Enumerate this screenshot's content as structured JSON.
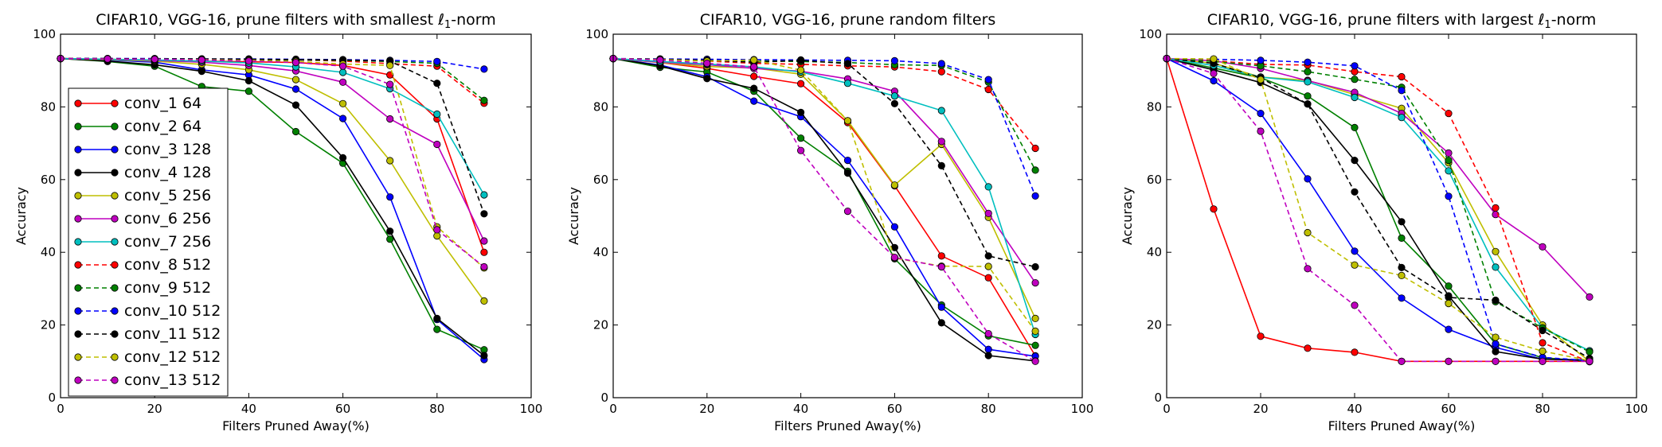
{
  "chart_data": [
    {
      "type": "line",
      "title": "CIFAR10, VGG-16, prune filters with smallest ℓ1-norm",
      "title_parts": {
        "prefix": "CIFAR10, VGG-16, prune filters with smallest ",
        "norm_symbol": "ℓ",
        "norm_subscript": "1",
        "suffix": "-norm"
      },
      "xlabel": "Filters Pruned Away(%)",
      "ylabel": "Accuracy",
      "xlim": [
        0,
        100
      ],
      "ylim": [
        0,
        100
      ],
      "xticks": [
        "0",
        "20",
        "40",
        "60",
        "80",
        "100"
      ],
      "yticks": [
        "0",
        "20",
        "40",
        "60",
        "80",
        "100"
      ],
      "grid": false,
      "legend_placement": "lower-left",
      "x": [
        0,
        10,
        20,
        30,
        40,
        50,
        60,
        70,
        80,
        90
      ],
      "series": [
        {
          "name": "conv_1 64",
          "color": "#ff0000",
          "style": "solid",
          "values": [
            93.3,
            93.1,
            92.8,
            92.6,
            92.4,
            92.2,
            91.4,
            88.8,
            76.7,
            40.0
          ]
        },
        {
          "name": "conv_2 64",
          "color": "#008000",
          "style": "solid",
          "values": [
            93.3,
            92.5,
            91.2,
            85.6,
            84.3,
            73.2,
            64.5,
            43.6,
            18.8,
            13.2
          ]
        },
        {
          "name": "conv_3 128",
          "color": "#0000ff",
          "style": "solid",
          "values": [
            93.3,
            92.9,
            92.3,
            90.2,
            88.8,
            84.9,
            76.8,
            55.2,
            21.5,
            10.5
          ]
        },
        {
          "name": "conv_4 128",
          "color": "#000000",
          "style": "solid",
          "values": [
            93.3,
            92.6,
            91.6,
            89.8,
            87.2,
            80.5,
            66.0,
            45.8,
            21.8,
            11.6
          ]
        },
        {
          "name": "conv_5 256",
          "color": "#bfbf00",
          "style": "solid",
          "values": [
            93.3,
            93.0,
            92.6,
            91.7,
            90.2,
            87.5,
            80.9,
            65.2,
            44.5,
            26.6
          ]
        },
        {
          "name": "conv_6 256",
          "color": "#bf00bf",
          "style": "solid",
          "values": [
            93.3,
            93.1,
            92.8,
            92.3,
            91.4,
            89.9,
            86.8,
            76.7,
            69.7,
            43.1
          ]
        },
        {
          "name": "conv_7 256",
          "color": "#00bfbf",
          "style": "solid",
          "values": [
            93.3,
            93.1,
            92.9,
            92.6,
            92.1,
            91.0,
            89.5,
            85.0,
            78.0,
            55.8
          ]
        },
        {
          "name": "conv_8 512",
          "color": "#ff0000",
          "style": "dashed",
          "values": [
            93.3,
            93.2,
            93.2,
            93.1,
            93.0,
            92.9,
            92.6,
            91.9,
            91.2,
            81.0
          ]
        },
        {
          "name": "conv_9 512",
          "color": "#008000",
          "style": "dashed",
          "values": [
            93.3,
            93.2,
            93.2,
            93.1,
            93.0,
            92.9,
            92.8,
            92.5,
            92.0,
            81.8
          ]
        },
        {
          "name": "conv_10 512",
          "color": "#0000ff",
          "style": "dashed",
          "values": [
            93.3,
            93.3,
            93.3,
            93.2,
            93.2,
            93.1,
            93.0,
            92.8,
            92.5,
            90.4
          ]
        },
        {
          "name": "conv_11 512",
          "color": "#000000",
          "style": "dashed",
          "values": [
            93.3,
            93.3,
            93.2,
            93.2,
            93.1,
            93.0,
            92.9,
            92.6,
            86.5,
            50.6
          ]
        },
        {
          "name": "conv_12 512",
          "color": "#bfbf00",
          "style": "dashed",
          "values": [
            93.3,
            93.2,
            93.1,
            93.0,
            92.8,
            92.5,
            91.8,
            91.4,
            47.0,
            35.7
          ]
        },
        {
          "name": "conv_13 512",
          "color": "#bf00bf",
          "style": "dashed",
          "values": [
            93.3,
            93.2,
            93.1,
            92.9,
            92.6,
            92.2,
            91.2,
            86.2,
            46.2,
            36.0
          ]
        }
      ]
    },
    {
      "type": "line",
      "title": "CIFAR10, VGG-16, prune random filters",
      "xlabel": "Filters Pruned Away(%)",
      "ylabel": "Accuracy",
      "xlim": [
        0,
        100
      ],
      "ylim": [
        0,
        100
      ],
      "xticks": [
        "0",
        "20",
        "40",
        "60",
        "80",
        "100"
      ],
      "yticks": [
        "0",
        "20",
        "40",
        "60",
        "80",
        "100"
      ],
      "grid": false,
      "x": [
        0,
        10,
        20,
        30,
        40,
        50,
        60,
        70,
        80,
        90
      ],
      "series": [
        {
          "color": "#ff0000",
          "style": "solid",
          "values": [
            93.3,
            92.2,
            90.6,
            88.4,
            86.4,
            75.7,
            58.3,
            39.0,
            33.0,
            11.5
          ]
        },
        {
          "color": "#008000",
          "style": "solid",
          "values": [
            93.3,
            90.9,
            89.6,
            84.3,
            71.4,
            62.3,
            38.2,
            25.5,
            17.0,
            14.4
          ]
        },
        {
          "color": "#0000ff",
          "style": "solid",
          "values": [
            93.3,
            91.5,
            88.3,
            81.6,
            77.3,
            65.3,
            47.0,
            24.9,
            13.3,
            11.4
          ]
        },
        {
          "color": "#000000",
          "style": "solid",
          "values": [
            93.3,
            91.3,
            87.8,
            85.1,
            78.5,
            61.8,
            41.3,
            20.6,
            11.6,
            10.1
          ]
        },
        {
          "color": "#bfbf00",
          "style": "solid",
          "values": [
            93.3,
            92.2,
            91.1,
            90.7,
            89.0,
            76.2,
            58.5,
            69.7,
            49.6,
            21.8
          ]
        },
        {
          "color": "#bf00bf",
          "style": "solid",
          "values": [
            93.3,
            92.3,
            91.6,
            90.6,
            89.8,
            87.7,
            84.3,
            70.5,
            50.7,
            31.6
          ]
        },
        {
          "color": "#00bfbf",
          "style": "solid",
          "values": [
            93.3,
            92.5,
            91.8,
            91.0,
            89.6,
            86.5,
            83.0,
            79.0,
            58.0,
            17.4
          ]
        },
        {
          "color": "#ff0000",
          "style": "dashed",
          "values": [
            93.3,
            93.1,
            92.6,
            92.0,
            91.7,
            91.3,
            91.0,
            89.7,
            84.8,
            68.6
          ]
        },
        {
          "color": "#008000",
          "style": "dashed",
          "values": [
            93.3,
            93.1,
            93.0,
            92.7,
            92.5,
            92.2,
            91.6,
            91.4,
            86.8,
            62.6
          ]
        },
        {
          "color": "#0000ff",
          "style": "dashed",
          "values": [
            93.3,
            93.2,
            93.1,
            93.0,
            92.9,
            92.8,
            92.7,
            91.9,
            87.5,
            55.5
          ]
        },
        {
          "color": "#000000",
          "style": "dashed",
          "values": [
            93.3,
            93.1,
            92.8,
            92.3,
            92.8,
            91.9,
            80.9,
            63.8,
            39.0,
            36.0
          ]
        },
        {
          "color": "#bfbf00",
          "style": "dashed",
          "values": [
            93.3,
            93.0,
            92.6,
            92.9,
            90.1,
            76.2,
            38.4,
            36.2,
            36.1,
            18.3
          ]
        },
        {
          "color": "#bf00bf",
          "style": "dashed",
          "values": [
            93.3,
            92.9,
            92.0,
            91.0,
            68.0,
            51.3,
            38.6,
            36.0,
            17.6,
            10.0
          ]
        }
      ]
    },
    {
      "type": "line",
      "title": "CIFAR10, VGG-16, prune filters with largest ℓ1-norm",
      "title_parts": {
        "prefix": "CIFAR10, VGG-16, prune filters with largest ",
        "norm_symbol": "ℓ",
        "norm_subscript": "1",
        "suffix": "-norm"
      },
      "xlabel": "Filters Pruned Away(%)",
      "ylabel": "Accuracy",
      "xlim": [
        0,
        100
      ],
      "ylim": [
        0,
        100
      ],
      "xticks": [
        "0",
        "20",
        "40",
        "60",
        "80",
        "100"
      ],
      "yticks": [
        "0",
        "20",
        "40",
        "60",
        "80",
        "100"
      ],
      "grid": false,
      "x": [
        0,
        10,
        20,
        30,
        40,
        50,
        60,
        70,
        80,
        90
      ],
      "series": [
        {
          "color": "#ff0000",
          "style": "solid",
          "values": [
            93.3,
            51.9,
            16.9,
            13.6,
            12.5,
            10.0,
            10.0,
            10.0,
            10.0,
            10.0
          ]
        },
        {
          "color": "#008000",
          "style": "solid",
          "values": [
            93.3,
            90.7,
            88.0,
            83.0,
            74.3,
            43.9,
            30.7,
            14.8,
            11.0,
            10.0
          ]
        },
        {
          "color": "#0000ff",
          "style": "solid",
          "values": [
            93.3,
            87.2,
            78.2,
            60.2,
            40.3,
            27.4,
            18.8,
            13.8,
            10.6,
            10.4
          ]
        },
        {
          "color": "#000000",
          "style": "solid",
          "values": [
            93.3,
            90.2,
            86.7,
            80.8,
            65.3,
            48.4,
            28.0,
            12.7,
            10.6,
            10.3
          ]
        },
        {
          "color": "#bfbf00",
          "style": "solid",
          "values": [
            93.3,
            92.0,
            88.2,
            87.3,
            83.4,
            79.6,
            64.6,
            40.2,
            20.0,
            10.0
          ]
        },
        {
          "color": "#bf00bf",
          "style": "solid",
          "values": [
            93.3,
            92.7,
            90.6,
            87.2,
            84.0,
            78.2,
            67.3,
            50.4,
            41.5,
            27.7
          ]
        },
        {
          "color": "#00bfbf",
          "style": "solid",
          "values": [
            93.3,
            91.4,
            88.2,
            86.9,
            82.6,
            77.1,
            62.4,
            35.9,
            19.2,
            12.9
          ]
        },
        {
          "color": "#ff0000",
          "style": "dashed",
          "values": [
            93.3,
            92.7,
            91.7,
            91.5,
            89.7,
            88.3,
            78.2,
            52.2,
            15.1,
            9.9
          ]
        },
        {
          "color": "#008000",
          "style": "dashed",
          "values": [
            93.3,
            92.5,
            91.3,
            89.7,
            87.6,
            85.4,
            65.3,
            26.4,
            19.2,
            12.6
          ]
        },
        {
          "color": "#0000ff",
          "style": "dashed",
          "values": [
            93.3,
            93.1,
            92.8,
            92.3,
            91.3,
            84.5,
            55.4,
            14.8,
            11.1,
            10.2
          ]
        },
        {
          "color": "#000000",
          "style": "dashed",
          "values": [
            93.3,
            92.0,
            88.0,
            80.8,
            56.6,
            35.8,
            27.6,
            26.8,
            18.5,
            10.8
          ]
        },
        {
          "color": "#bfbf00",
          "style": "dashed",
          "values": [
            93.3,
            93.2,
            87.5,
            45.4,
            36.5,
            33.6,
            25.9,
            16.6,
            12.8,
            10.2
          ]
        },
        {
          "color": "#bf00bf",
          "style": "dashed",
          "values": [
            93.3,
            89.2,
            73.3,
            35.5,
            25.4,
            10.0,
            10.0,
            10.0,
            10.0,
            10.0
          ]
        }
      ]
    }
  ]
}
